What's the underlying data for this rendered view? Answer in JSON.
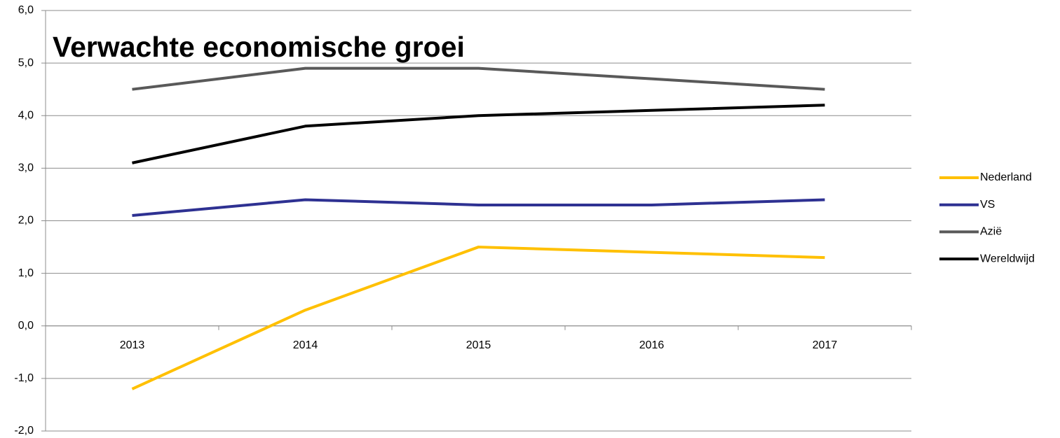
{
  "chart_data": {
    "type": "line",
    "title": "Verwachte economische groei",
    "categories": [
      "2013",
      "2014",
      "2015",
      "2016",
      "2017"
    ],
    "series": [
      {
        "name": "Nederland",
        "color": "#ffc000",
        "values": [
          -1.2,
          0.3,
          1.5,
          1.4,
          1.3
        ]
      },
      {
        "name": "VS",
        "color": "#2e3192",
        "values": [
          2.1,
          2.4,
          2.3,
          2.3,
          2.4
        ]
      },
      {
        "name": "Azië",
        "color": "#595959",
        "values": [
          4.5,
          4.9,
          4.9,
          4.7,
          4.5
        ]
      },
      {
        "name": "Wereldwijd",
        "color": "#000000",
        "values": [
          3.1,
          3.8,
          4.0,
          4.1,
          4.2
        ]
      }
    ],
    "ylim": [
      -2,
      6
    ],
    "yticks": [
      {
        "value": -2,
        "label": "-2,0"
      },
      {
        "value": -1,
        "label": "-1,0"
      },
      {
        "value": 0,
        "label": "0,0"
      },
      {
        "value": 1,
        "label": "1,0"
      },
      {
        "value": 2,
        "label": "2,0"
      },
      {
        "value": 3,
        "label": "3,0"
      },
      {
        "value": 4,
        "label": "4,0"
      },
      {
        "value": 5,
        "label": "5,0"
      },
      {
        "value": 6,
        "label": "6,0"
      }
    ],
    "grid": true,
    "legend": "right"
  }
}
